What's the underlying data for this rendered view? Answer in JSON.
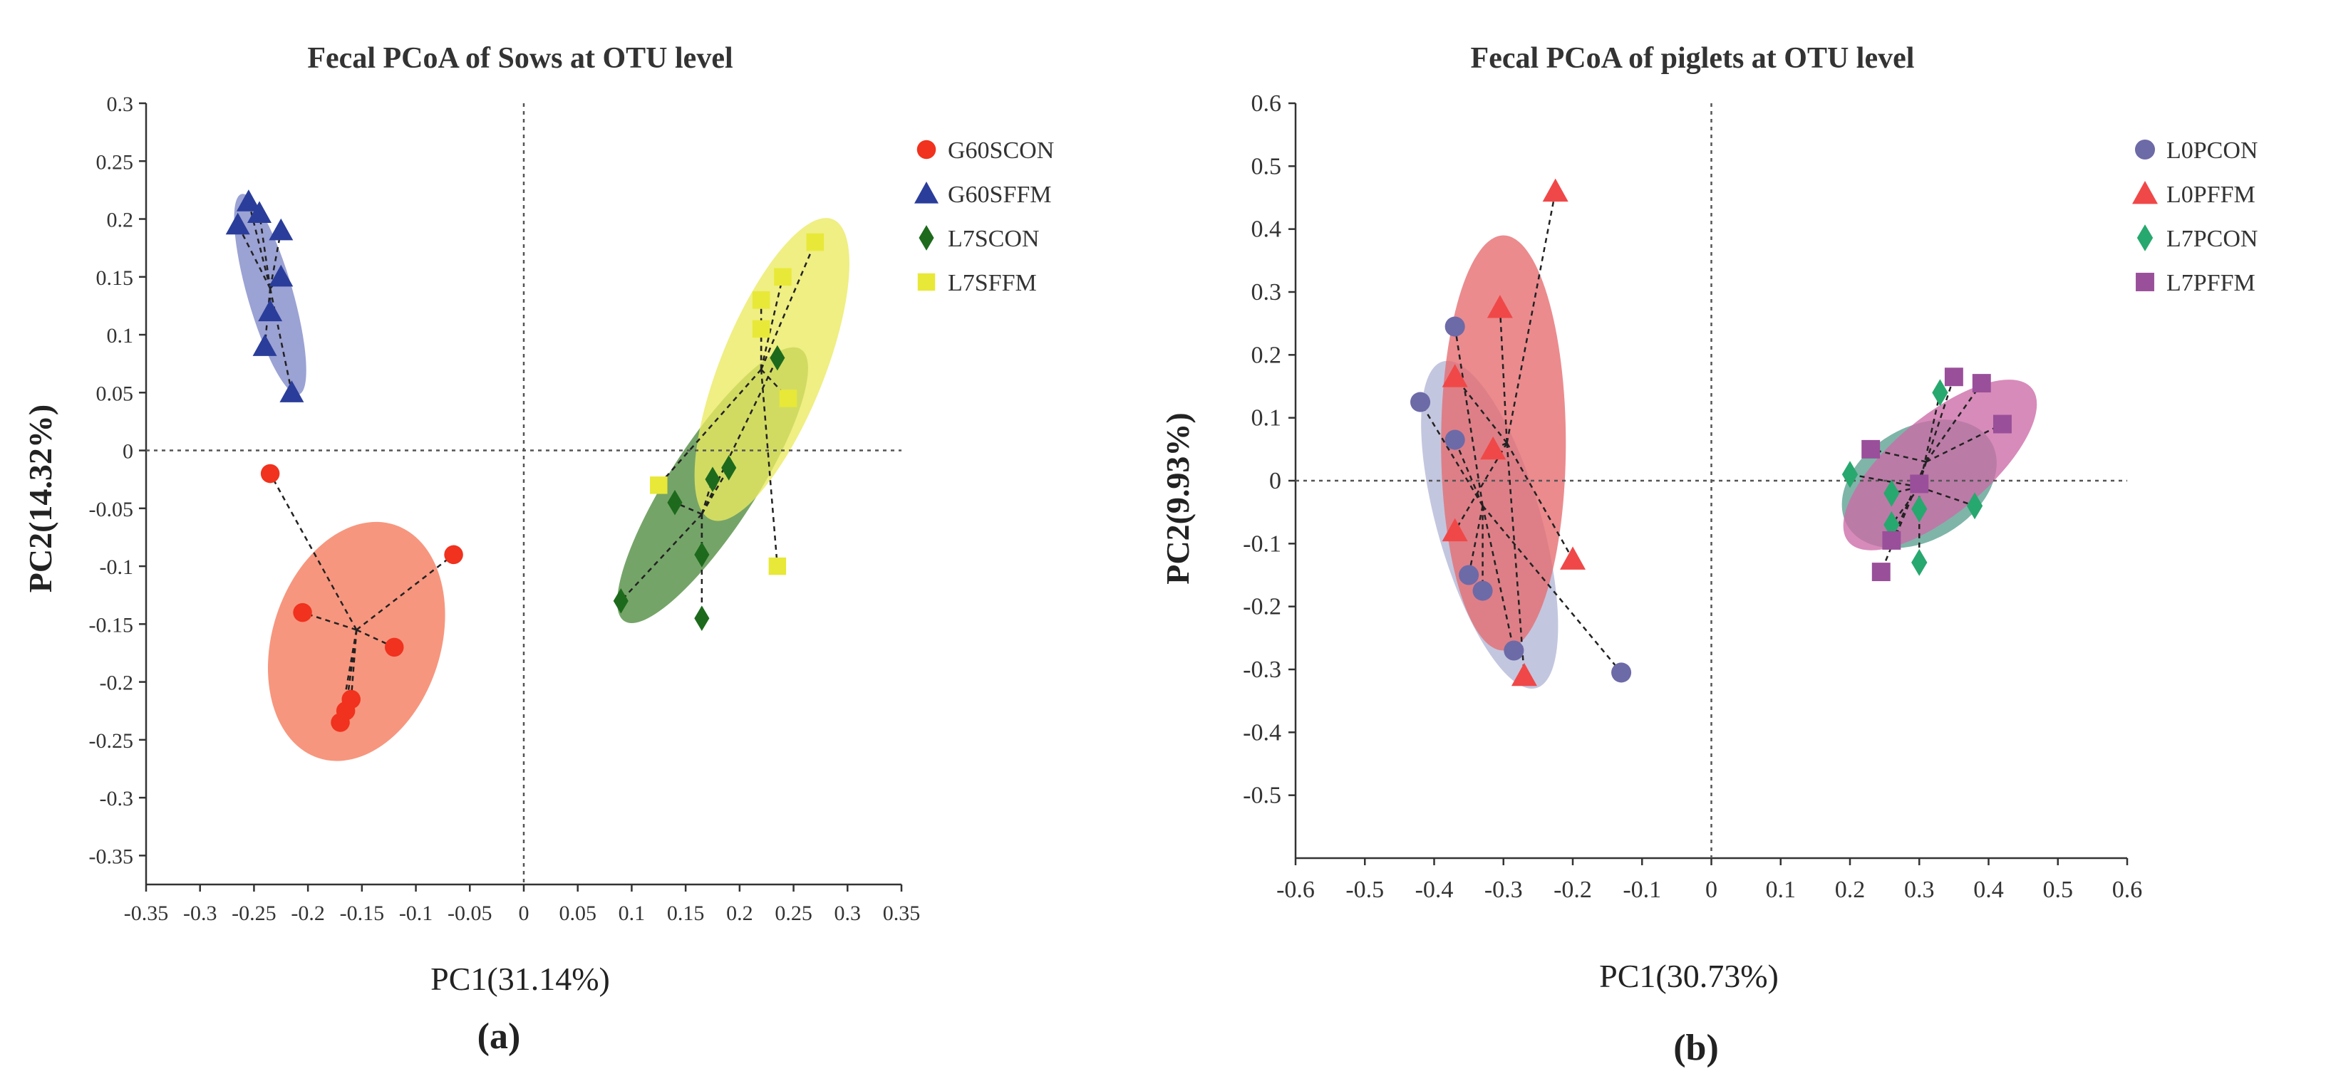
{
  "figure": {
    "label_a": "(a)",
    "label_b": "(b)"
  },
  "colors": {
    "G60SCON": "#f0321e",
    "G60SCON_ell": "#f5785a",
    "G60SFFM": "#2a3d9a",
    "G60SFFM_ell": "#7f88c8",
    "L7SCON": "#1d6a1d",
    "L7SCON_ell": "#4e8a3e",
    "L7SFFM": "#e8e838",
    "L7SFFM_ell": "#eaea60",
    "L0PCON": "#6d6aa8",
    "L0PCON_ell": "#b2b6d6",
    "L0PFFM": "#f04848",
    "L0PFFM_ell": "#e66a6e",
    "L7PCON": "#27a86e",
    "L7PCON_ell": "#5aa090",
    "L7PFFM": "#9a4f9a",
    "L7PFFM_ell": "#cc6aa6"
  },
  "chart_data": [
    {
      "type": "scatter",
      "title": "Fecal PCoA of Sows at OTU level",
      "xlabel": "PC1(31.14%)",
      "ylabel": "PC2(14.32%)",
      "xlim": [
        -0.35,
        0.35
      ],
      "ylim": [
        -0.375,
        0.3
      ],
      "xticks": [
        -0.35,
        -0.3,
        -0.25,
        -0.2,
        -0.15,
        -0.1,
        -0.05,
        0,
        0.05,
        0.1,
        0.15,
        0.2,
        0.25,
        0.3,
        0.35
      ],
      "xtick_labels": [
        "-0.35",
        "-0.3",
        "-0.25",
        "-0.2",
        "-0.15",
        "-0.1",
        "-0.05",
        "0",
        "0.05",
        "0.1",
        "0.15",
        "0.2",
        "0.25",
        "0.3",
        "0.35"
      ],
      "yticks": [
        0.3,
        0.25,
        0.2,
        0.15,
        0.1,
        0.05,
        0,
        -0.05,
        -0.1,
        -0.15,
        -0.2,
        -0.25,
        -0.3,
        -0.35
      ],
      "ytick_labels": [
        "0.3",
        "0.25",
        "0.2",
        "0.15",
        "0.1",
        "0.05",
        "0",
        "-0.05",
        "-0.1",
        "-0.15",
        "-0.2",
        "-0.25",
        "-0.3",
        "-0.35"
      ],
      "legend_position": "right",
      "series": [
        {
          "name": "G60SCON",
          "marker": "circle",
          "color_key": "G60SCON",
          "centroid": [
            -0.155,
            -0.155
          ],
          "ellipse": {
            "center": [
              -0.155,
              -0.165
            ],
            "rx": 0.078,
            "ry": 0.106,
            "angle": 18
          },
          "points": [
            [
              -0.235,
              -0.02
            ],
            [
              -0.065,
              -0.09
            ],
            [
              -0.205,
              -0.14
            ],
            [
              -0.12,
              -0.17
            ],
            [
              -0.16,
              -0.215
            ],
            [
              -0.165,
              -0.225
            ],
            [
              -0.17,
              -0.235
            ]
          ]
        },
        {
          "name": "G60SFFM",
          "marker": "triangle",
          "color_key": "G60SFFM",
          "centroid": [
            -0.235,
            0.14
          ],
          "ellipse": {
            "center": [
              -0.235,
              0.135
            ],
            "rx": 0.021,
            "ry": 0.09,
            "angle": -16
          },
          "points": [
            [
              -0.255,
              0.215
            ],
            [
              -0.265,
              0.195
            ],
            [
              -0.245,
              0.205
            ],
            [
              -0.225,
              0.19
            ],
            [
              -0.225,
              0.15
            ],
            [
              -0.235,
              0.12
            ],
            [
              -0.24,
              0.09
            ],
            [
              -0.215,
              0.05
            ]
          ]
        },
        {
          "name": "L7SCON",
          "marker": "diamond",
          "color_key": "L7SCON",
          "centroid": [
            0.165,
            -0.055
          ],
          "ellipse": {
            "center": [
              0.175,
              -0.03
            ],
            "rx": 0.04,
            "ry": 0.14,
            "angle": 33
          },
          "points": [
            [
              0.09,
              -0.13
            ],
            [
              0.14,
              -0.045
            ],
            [
              0.165,
              -0.09
            ],
            [
              0.165,
              -0.145
            ],
            [
              0.175,
              -0.025
            ],
            [
              0.19,
              -0.015
            ],
            [
              0.235,
              0.08
            ]
          ]
        },
        {
          "name": "L7SFFM",
          "marker": "square",
          "color_key": "L7SFFM",
          "centroid": [
            0.22,
            0.07
          ],
          "ellipse": {
            "center": [
              0.23,
              0.07
            ],
            "rx": 0.048,
            "ry": 0.14,
            "angle": 22
          },
          "points": [
            [
              0.125,
              -0.03
            ],
            [
              0.22,
              0.13
            ],
            [
              0.22,
              0.105
            ],
            [
              0.24,
              0.15
            ],
            [
              0.27,
              0.18
            ],
            [
              0.245,
              0.045
            ],
            [
              0.235,
              -0.1
            ]
          ]
        }
      ]
    },
    {
      "type": "scatter",
      "title": "Fecal PCoA  of piglets at OTU level",
      "xlabel": "PC1(30.73%)",
      "ylabel": "PC2(9.93%)",
      "xlim": [
        -0.6,
        0.6
      ],
      "ylim": [
        -0.6,
        0.6
      ],
      "xticks": [
        -0.6,
        -0.5,
        -0.4,
        -0.3,
        -0.2,
        -0.1,
        0,
        0.1,
        0.2,
        0.3,
        0.4,
        0.5,
        0.6
      ],
      "xtick_labels": [
        "-0.6",
        "-0.5",
        "-0.4",
        "-0.3",
        "-0.2",
        "-0.1",
        "0",
        "0.1",
        "0.2",
        "0.3",
        "0.4",
        "0.5",
        "0.6"
      ],
      "yticks": [
        0.6,
        0.5,
        0.4,
        0.3,
        0.2,
        0.1,
        0,
        -0.1,
        -0.2,
        -0.3,
        -0.4,
        -0.5
      ],
      "ytick_labels": [
        "0.6",
        "0.5",
        "0.4",
        "0.3",
        "0.2",
        "0.1",
        "0",
        "-0.1",
        "-0.2",
        "-0.3",
        "-0.4",
        "-0.5"
      ],
      "legend_position": "right",
      "series": [
        {
          "name": "L0PCON",
          "marker": "circle",
          "color_key": "L0PCON",
          "centroid": [
            -0.33,
            -0.04
          ],
          "ellipse": {
            "center": [
              -0.32,
              -0.07
            ],
            "rx": 0.075,
            "ry": 0.27,
            "angle": -16
          },
          "points": [
            [
              -0.37,
              0.245
            ],
            [
              -0.42,
              0.125
            ],
            [
              -0.37,
              0.065
            ],
            [
              -0.35,
              -0.15
            ],
            [
              -0.33,
              -0.175
            ],
            [
              -0.285,
              -0.27
            ],
            [
              -0.13,
              -0.305
            ]
          ]
        },
        {
          "name": "L0PFFM",
          "marker": "triangle",
          "color_key": "L0PFFM",
          "centroid": [
            -0.295,
            0.06
          ],
          "ellipse": {
            "center": [
              -0.3,
              0.06
            ],
            "rx": 0.09,
            "ry": 0.33,
            "angle": 0
          },
          "points": [
            [
              -0.225,
              0.46
            ],
            [
              -0.305,
              0.275
            ],
            [
              -0.37,
              0.165
            ],
            [
              -0.315,
              0.05
            ],
            [
              -0.37,
              -0.08
            ],
            [
              -0.2,
              -0.125
            ],
            [
              -0.27,
              -0.31
            ]
          ]
        },
        {
          "name": "L7PCON",
          "marker": "diamond",
          "color_key": "L7PCON",
          "centroid": [
            0.3,
            -0.01
          ],
          "ellipse": {
            "center": [
              0.3,
              -0.005
            ],
            "rx": 0.12,
            "ry": 0.09,
            "angle": -30
          },
          "points": [
            [
              0.2,
              0.01
            ],
            [
              0.33,
              0.14
            ],
            [
              0.26,
              -0.02
            ],
            [
              0.26,
              -0.07
            ],
            [
              0.3,
              -0.045
            ],
            [
              0.38,
              -0.04
            ],
            [
              0.3,
              -0.13
            ]
          ]
        },
        {
          "name": "L7PFFM",
          "marker": "square",
          "color_key": "L7PFFM",
          "centroid": [
            0.31,
            0.03
          ],
          "ellipse": {
            "center": [
              0.33,
              0.025
            ],
            "rx": 0.07,
            "ry": 0.19,
            "angle": 50
          },
          "points": [
            [
              0.23,
              0.05
            ],
            [
              0.35,
              0.165
            ],
            [
              0.39,
              0.155
            ],
            [
              0.42,
              0.09
            ],
            [
              0.3,
              -0.005
            ],
            [
              0.26,
              -0.095
            ],
            [
              0.245,
              -0.145
            ]
          ]
        }
      ]
    }
  ]
}
